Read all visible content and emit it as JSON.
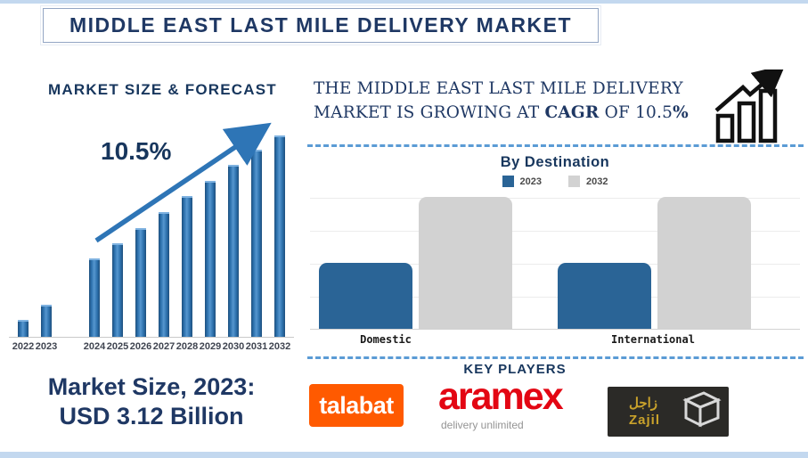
{
  "page": {
    "title": "MIDDLE EAST LAST MILE DELIVERY MARKET"
  },
  "headline": {
    "line1": "THE MIDDLE EAST LAST MILE DELIVERY",
    "line2_start": "MARKET IS GROWING AT ",
    "cagr": "CAGR",
    "line2_mid": " OF  10.5",
    "percent": "%"
  },
  "market_size": {
    "line1": "Market Size, 2023:",
    "line2": "USD 3.12 Billion"
  },
  "key_players": {
    "heading": "KEY PLAYERS",
    "talabat_text": "talabat",
    "aramex_text": "aramex",
    "aramex_tagline": "delivery unlimited",
    "zajil_arabic": "زاجل",
    "zajil_text": "Zajil"
  },
  "colors": {
    "navy": "#1f3864",
    "forecast_bar_blue": "#2e75b6",
    "destination_blue": "#2a6496",
    "destination_gray": "#d2d2d2",
    "dashed_divider_blue": "#5b9bd5",
    "talabat_orange": "#ff5a00",
    "aramex_red": "#e30613",
    "zajil_yellow": "#c9a22b",
    "zajil_dark": "#2b2a27"
  },
  "chart_data": [
    {
      "type": "bar",
      "title": "MARKET SIZE & FORECAST",
      "categories": [
        "2022",
        "2023",
        "2024",
        "2025",
        "2026",
        "2027",
        "2028",
        "2029",
        "2030",
        "2031",
        "2032"
      ],
      "values": [
        8.4,
        15.9,
        38.9,
        46.5,
        54.0,
        61.9,
        69.9,
        77.4,
        85.4,
        92.9,
        100
      ],
      "value_unit": "percent of 2032 bar height (y-axis unlabeled)",
      "known_point_label": "2023 = USD 3.12 Billion",
      "annotation": "10.5%",
      "bar_color": "#2e75b6",
      "trend_arrow": true,
      "grid": false
    },
    {
      "type": "bar",
      "title": "By Destination",
      "categories": [
        "Domestic",
        "International"
      ],
      "series": [
        {
          "name": "2023",
          "color": "#2a6496",
          "values": [
            50,
            50
          ]
        },
        {
          "name": "2032",
          "color": "#d2d2d2",
          "values": [
            100,
            100
          ]
        }
      ],
      "value_unit": "percent of 2032 bar height (y-axis unlabeled)",
      "legend_position": "top",
      "grid": true
    }
  ]
}
